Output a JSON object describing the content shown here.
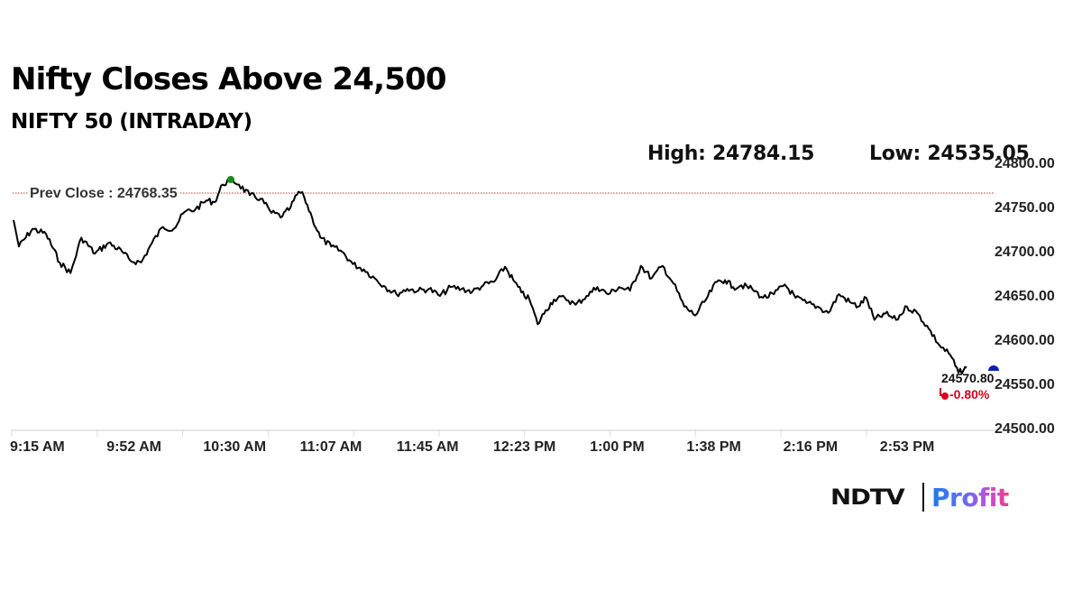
{
  "header": {
    "title": "Nifty Closes Above 24,500",
    "subtitle": "NIFTY 50 (INTRADAY)",
    "high": "High: 24784.15",
    "low": "Low: 24535.05"
  },
  "annotations": {
    "prev_close": "Prev Close : 24768.35",
    "last_value": "24570.80",
    "last_change": "-0.80%"
  },
  "colors": {
    "line": "#000000",
    "prev_close_line": "#b03a3a",
    "high_marker": "#1f8a1f",
    "last_marker": "#0a1fb5",
    "change_negative": "#d0021b",
    "axis": "#cccccc"
  },
  "logo": {
    "brand": "NDTV",
    "product": "Profit"
  },
  "chart_data": {
    "type": "line",
    "title": "Nifty Closes Above 24,500",
    "subtitle": "NIFTY 50 (INTRADAY)",
    "xlabel": "",
    "ylabel": "",
    "x_tick_labels": [
      "9:15 AM",
      "9:52 AM",
      "10:30 AM",
      "11:07 AM",
      "11:45 AM",
      "12:23 PM",
      "1:00 PM",
      "1:38 PM",
      "2:16 PM",
      "2:53 PM"
    ],
    "y_tick_labels": [
      "24800.00",
      "24750.00",
      "24700.00",
      "24650.00",
      "24600.00",
      "24550.00",
      "24500.00"
    ],
    "ylim": [
      24500,
      24800
    ],
    "y_axis_position": "right",
    "grid": false,
    "legend": null,
    "prev_close": 24768.35,
    "high": 24784.15,
    "low": 24535.05,
    "last": 24570.8,
    "change_pct": -0.8,
    "series": [
      {
        "name": "NIFTY 50",
        "x": [
          "9:15",
          "9:17",
          "9:22",
          "9:27",
          "9:32",
          "9:36",
          "9:40",
          "9:45",
          "9:50",
          "9:55",
          "9:58",
          "10:02",
          "10:06",
          "10:10",
          "10:14",
          "10:18",
          "10:22",
          "10:26",
          "10:29",
          "10:32",
          "10:35",
          "10:38",
          "10:42",
          "10:46",
          "10:50",
          "10:54",
          "10:57",
          "11:00",
          "11:02",
          "11:05",
          "11:08",
          "11:12",
          "11:16",
          "11:20",
          "11:24",
          "11:28",
          "11:32",
          "11:36",
          "11:40",
          "11:44",
          "11:48",
          "11:52",
          "11:56",
          "12:00",
          "12:04",
          "12:08",
          "12:12",
          "12:16",
          "12:19",
          "12:22",
          "12:25",
          "12:28",
          "12:31",
          "12:34",
          "12:38",
          "12:42",
          "12:46",
          "12:50",
          "12:54",
          "12:58",
          "13:02",
          "13:06",
          "13:10",
          "13:14",
          "13:18",
          "13:22",
          "13:26",
          "13:30",
          "13:34",
          "13:37",
          "13:40",
          "13:43",
          "13:47",
          "13:51",
          "13:55",
          "13:59",
          "14:03",
          "14:07",
          "14:11",
          "14:15",
          "14:19",
          "14:23",
          "14:26",
          "14:29",
          "14:32",
          "14:36",
          "14:40",
          "14:44",
          "14:48",
          "14:52",
          "14:56",
          "15:00",
          "15:03",
          "15:06"
        ],
        "values": [
          24738,
          24708,
          24728,
          24722,
          24690,
          24678,
          24718,
          24700,
          24712,
          24702,
          24692,
          24690,
          24712,
          24730,
          24728,
          24747,
          24750,
          24760,
          24758,
          24778,
          24784,
          24778,
          24766,
          24762,
          24746,
          24742,
          24752,
          24770,
          24764,
          24740,
          24718,
          24708,
          24702,
          24688,
          24682,
          24672,
          24662,
          24654,
          24660,
          24658,
          24660,
          24652,
          24662,
          24660,
          24657,
          24664,
          24668,
          24685,
          24670,
          24656,
          24648,
          24620,
          24636,
          24648,
          24650,
          24642,
          24652,
          24662,
          24654,
          24662,
          24658,
          24686,
          24672,
          24686,
          24666,
          24640,
          24630,
          24648,
          24668,
          24670,
          24662,
          24664,
          24660,
          24650,
          24654,
          24665,
          24650,
          24644,
          24640,
          24633,
          24654,
          24645,
          24640,
          24650,
          24625,
          24632,
          24625,
          24640,
          24632,
          24615,
          24596,
          24585,
          24565,
          24571
        ]
      }
    ]
  }
}
